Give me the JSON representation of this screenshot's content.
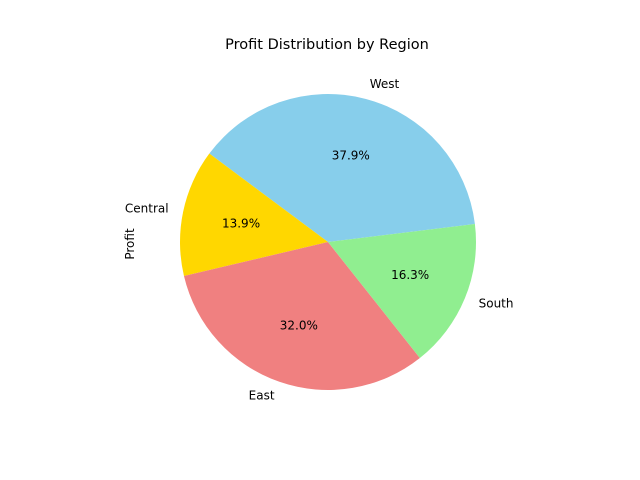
{
  "chart_data": {
    "type": "pie",
    "title": "Profit Distribution by Region",
    "ylabel": "Profit",
    "xlabel": "",
    "categories": [
      "West",
      "Central",
      "East",
      "South"
    ],
    "values": [
      37.9,
      13.9,
      32.0,
      16.3
    ],
    "percent_labels": [
      "37.9%",
      "13.9%",
      "32.0%",
      "16.3%"
    ],
    "colors": [
      "#87CEEB",
      "#FFD700",
      "#F08080",
      "#90EE90"
    ],
    "start_angle_deg": 7,
    "direction": "counterclockwise",
    "legend": "none",
    "grid": false
  }
}
